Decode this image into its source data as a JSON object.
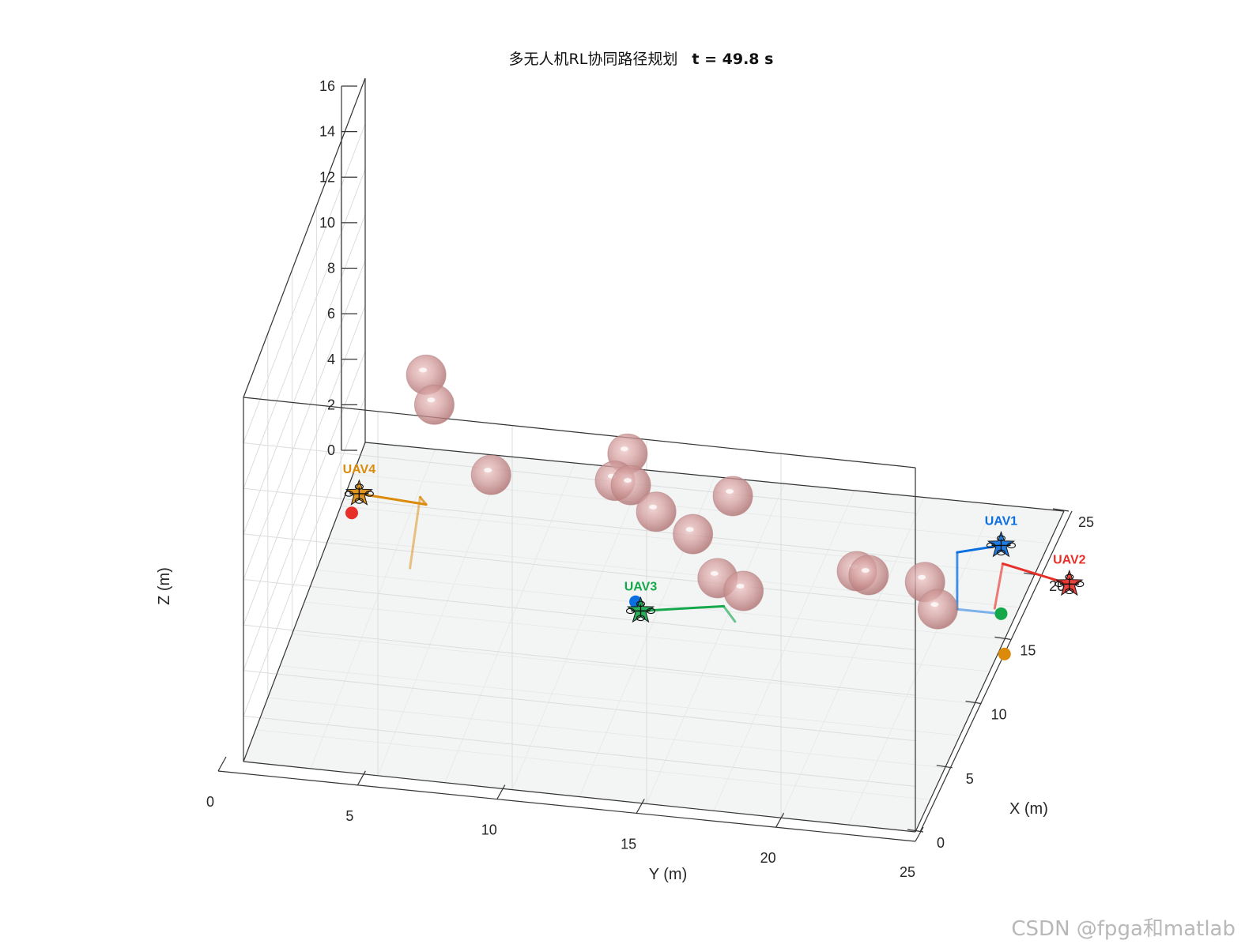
{
  "chart_data": {
    "type": "scatter3d",
    "title_normal": "多无人机RL协同路径规划",
    "title_bold": "t = 49.8 s",
    "xlabel": "X (m)",
    "ylabel": "Y (m)",
    "zlabel": "Z (m)",
    "xlim": [
      0,
      25
    ],
    "ylim": [
      0,
      25
    ],
    "zlim": [
      0,
      16
    ],
    "xticks": [
      0,
      5,
      10,
      15,
      20,
      25
    ],
    "yticks": [
      0,
      5,
      10,
      15,
      20,
      25
    ],
    "zticks": [
      0,
      2,
      4,
      6,
      8,
      10,
      12,
      14,
      16
    ],
    "grid": true,
    "obstacles": [
      {
        "x": 12.2,
        "y": 4.5,
        "z": 10.7
      },
      {
        "x": 9.5,
        "y": 5.3,
        "z": 11.0
      },
      {
        "x": 11.5,
        "y": 7.0,
        "z": 7.0
      },
      {
        "x": 9.1,
        "y": 12.0,
        "z": 8.7
      },
      {
        "x": 5.5,
        "y": 16.5,
        "z": 7.0
      },
      {
        "x": 3.7,
        "y": 14.6,
        "z": 10.7
      },
      {
        "x": 3.9,
        "y": 13.5,
        "z": 13.0
      },
      {
        "x": 6.0,
        "y": 13.2,
        "z": 10.4
      },
      {
        "x": 3.5,
        "y": 16.0,
        "z": 10.0
      },
      {
        "x": 5.8,
        "y": 17.0,
        "z": 10.5
      },
      {
        "x": 0.5,
        "y": 18.5,
        "z": 9.5
      },
      {
        "x": 1.5,
        "y": 22.5,
        "z": 10.3
      },
      {
        "x": 3.5,
        "y": 22.5,
        "z": 9.0
      },
      {
        "x": 1.5,
        "y": 25.5,
        "z": 9.0
      },
      {
        "x": 8.5,
        "y": 23.5,
        "z": 6.0
      }
    ],
    "uavs": [
      {
        "name": "UAV1",
        "color": "#0a6fe0",
        "x": 13.5,
        "y": 25.2,
        "z": 5.0,
        "path": [
          [
            13.5,
            25.2,
            2.0
          ],
          [
            13.5,
            23.6,
            2.0
          ],
          [
            13.5,
            23.6,
            4.5
          ],
          [
            13.5,
            25.2,
            5.0
          ]
        ]
      },
      {
        "name": "UAV2",
        "color": "#e8302a",
        "x": 1.0,
        "y": 30.5,
        "z": 11.0,
        "path": [
          [
            2.0,
            27.5,
            9.0
          ],
          [
            2.0,
            27.8,
            11.0
          ],
          [
            1.0,
            30.5,
            11.0
          ]
        ]
      },
      {
        "name": "UAV3",
        "color": "#15a84a",
        "x": -3.5,
        "y": 15.5,
        "z": 10.5,
        "path": [
          [
            -1.0,
            18.5,
            9.0
          ],
          [
            -3.0,
            18.5,
            10.8
          ],
          [
            -3.5,
            15.5,
            10.5
          ]
        ]
      },
      {
        "name": "UAV4",
        "color": "#dc8a0a",
        "x": 12.5,
        "y": 2.0,
        "z": 5.0,
        "path": [
          [
            9.0,
            4.5,
            4.0
          ],
          [
            11.0,
            4.5,
            6.0
          ],
          [
            12.2,
            4.5,
            5.0
          ],
          [
            12.5,
            2.0,
            5.0
          ]
        ]
      }
    ],
    "goals": [
      {
        "color": "#15a84a",
        "x": 13.5,
        "y": 25.2,
        "z": 2.0
      },
      {
        "color": "#e8302a",
        "x": 11.0,
        "y": 2.0,
        "z": 5.0
      },
      {
        "color": "#0a6fe0",
        "x": -2.0,
        "y": 15.0,
        "z": 10.0
      },
      {
        "color": "#dc8a0a",
        "x": -3.0,
        "y": 29.0,
        "z": 10.0
      }
    ]
  },
  "watermark": "CSDN @fpga和matlab"
}
